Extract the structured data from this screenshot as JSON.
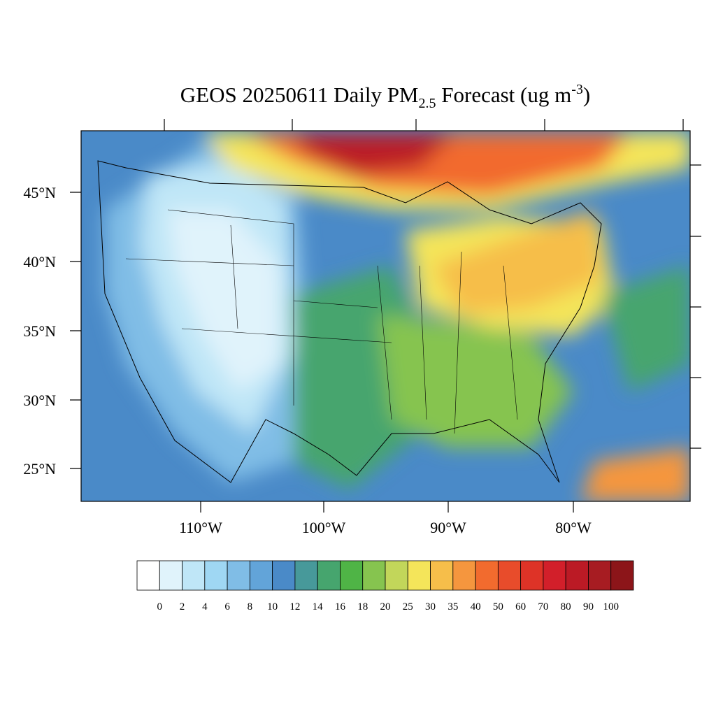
{
  "title": {
    "main": "GEOS 20250611 Daily PM",
    "sub": "2.5",
    "rest": " Forecast (ug m",
    "sup": "-3",
    "end": ")"
  },
  "map": {
    "lat_labels": [
      "45°N",
      "40°N",
      "35°N",
      "30°N",
      "25°N"
    ],
    "lon_labels": [
      "110°W",
      "100°W",
      "90°W",
      "80°W"
    ]
  },
  "colorbar": {
    "colors": [
      "#ffffff",
      "#e0f3fb",
      "#bfe6f7",
      "#9fd7f3",
      "#80bde6",
      "#62a4d9",
      "#4a8ac8",
      "#47999a",
      "#46a56e",
      "#4fb446",
      "#86c44f",
      "#c2d65a",
      "#f4e55a",
      "#f6be4a",
      "#f5963e",
      "#f26b2e",
      "#e84c2b",
      "#de3327",
      "#d21f2a",
      "#bb1a25",
      "#a71c22",
      "#8c1519"
    ],
    "labels": [
      "0",
      "2",
      "4",
      "6",
      "8",
      "10",
      "12",
      "14",
      "16",
      "18",
      "20",
      "25",
      "30",
      "35",
      "40",
      "50",
      "60",
      "70",
      "80",
      "90",
      "100"
    ]
  }
}
